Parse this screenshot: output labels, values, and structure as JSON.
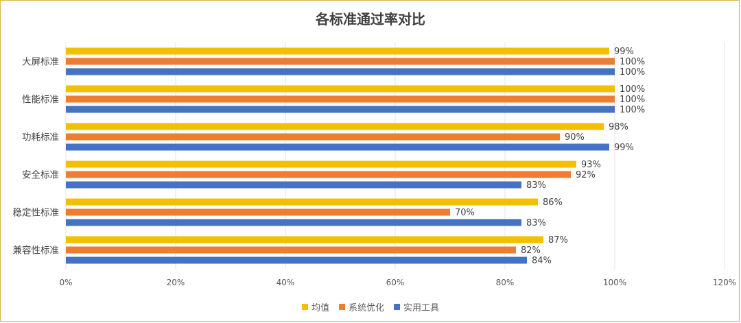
{
  "chart_data": {
    "type": "bar",
    "orientation": "horizontal",
    "title": "各标准通过率对比",
    "categories": [
      "大屏标准",
      "性能标准",
      "功耗标准",
      "安全标准",
      "稳定性标准",
      "兼容性标准"
    ],
    "series": [
      {
        "name": "均值",
        "color": "#f2c000",
        "values": [
          99,
          100,
          98,
          93,
          86,
          87
        ]
      },
      {
        "name": "系统优化",
        "color": "#ed7d31",
        "values": [
          100,
          100,
          90,
          92,
          70,
          82
        ]
      },
      {
        "name": "实用工具",
        "color": "#4472c4",
        "values": [
          100,
          100,
          99,
          83,
          83,
          84
        ]
      }
    ],
    "xlim": [
      0,
      120
    ],
    "xticks": [
      0,
      20,
      40,
      60,
      80,
      100,
      120
    ],
    "tick_suffix": "%",
    "value_suffix": "%",
    "grid": true,
    "legend_position": "bottom"
  }
}
